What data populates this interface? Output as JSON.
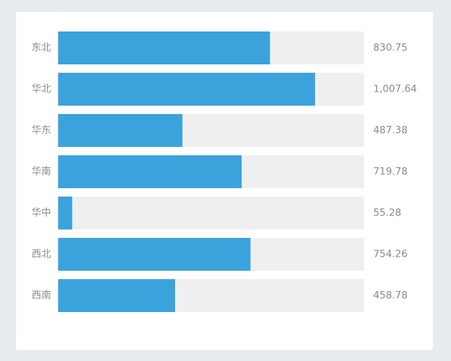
{
  "chart_data": {
    "type": "bar",
    "orientation": "horizontal",
    "categories": [
      "东北",
      "华北",
      "华东",
      "华南",
      "华中",
      "西北",
      "西南"
    ],
    "values": [
      830.75,
      1007.64,
      487.38,
      719.78,
      55.28,
      754.26,
      458.78
    ],
    "value_labels": [
      "830.75",
      "1,007.64",
      "487.38",
      "719.78",
      "55.28",
      "754.26",
      "458.78"
    ],
    "xlim": [
      0,
      1200
    ],
    "grid": false,
    "bar_color": "#3ba3dc",
    "track_color": "#efefef"
  }
}
